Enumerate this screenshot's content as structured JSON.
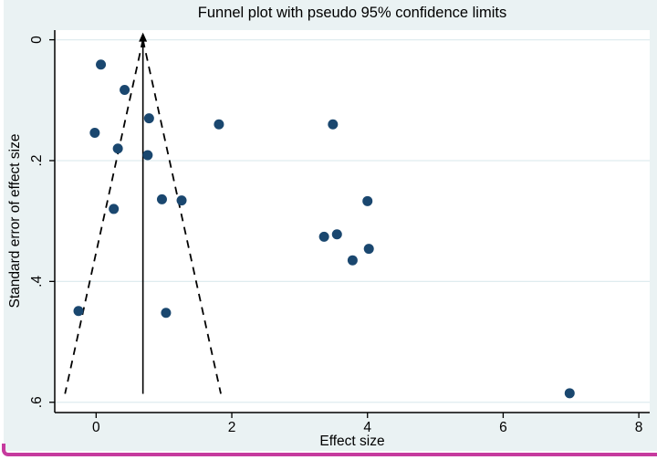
{
  "figure": {
    "background_color": "#eaf2f3",
    "plot_background_color": "#ffffff",
    "grid_color": "#dfecef",
    "axis_color": "#000000",
    "marker_color": "#1a476f",
    "funnel_line_color": "#000000",
    "accent_border_color": "#c63a9e"
  },
  "chart_data": {
    "type": "scatter",
    "title": "Funnel plot with pseudo 95% confidence limits",
    "xlabel": "Effect size",
    "ylabel": "Standard error of effect size",
    "x_ticks": [
      {
        "value": 0,
        "label": "0"
      },
      {
        "value": 2,
        "label": "2"
      },
      {
        "value": 4,
        "label": "4"
      },
      {
        "value": 6,
        "label": "6"
      },
      {
        "value": 8,
        "label": "8"
      }
    ],
    "y_ticks": [
      {
        "value": 0,
        "label": "0"
      },
      {
        "value": 0.2,
        "label": ".2"
      },
      {
        "value": 0.4,
        "label": ".4"
      },
      {
        "value": 0.6,
        "label": ".6"
      }
    ],
    "xlim": [
      -0.61,
      8.16
    ],
    "ylim": [
      -0.016,
      0.617
    ],
    "y_axis_reversed": true,
    "grid": "horizontal",
    "legend": "none",
    "pooled_effect": 0.69,
    "se_max": 0.586,
    "ci_multiplier": 1.96,
    "funnel_line_style": "dashed",
    "points": [
      {
        "effect": 0.07,
        "se": 0.041
      },
      {
        "effect": 0.42,
        "se": 0.083
      },
      {
        "effect": 0.78,
        "se": 0.13
      },
      {
        "effect": -0.02,
        "se": 0.154
      },
      {
        "effect": 1.81,
        "se": 0.14
      },
      {
        "effect": 3.49,
        "se": 0.14
      },
      {
        "effect": 0.32,
        "se": 0.18
      },
      {
        "effect": 0.76,
        "se": 0.191
      },
      {
        "effect": 0.26,
        "se": 0.28
      },
      {
        "effect": 0.97,
        "se": 0.264
      },
      {
        "effect": 1.26,
        "se": 0.266
      },
      {
        "effect": 4.0,
        "se": 0.267
      },
      {
        "effect": 3.36,
        "se": 0.326
      },
      {
        "effect": 3.55,
        "se": 0.322
      },
      {
        "effect": 4.02,
        "se": 0.346
      },
      {
        "effect": 3.78,
        "se": 0.365
      },
      {
        "effect": -0.26,
        "se": 0.449
      },
      {
        "effect": 1.03,
        "se": 0.452
      },
      {
        "effect": 6.98,
        "se": 0.585
      }
    ]
  }
}
